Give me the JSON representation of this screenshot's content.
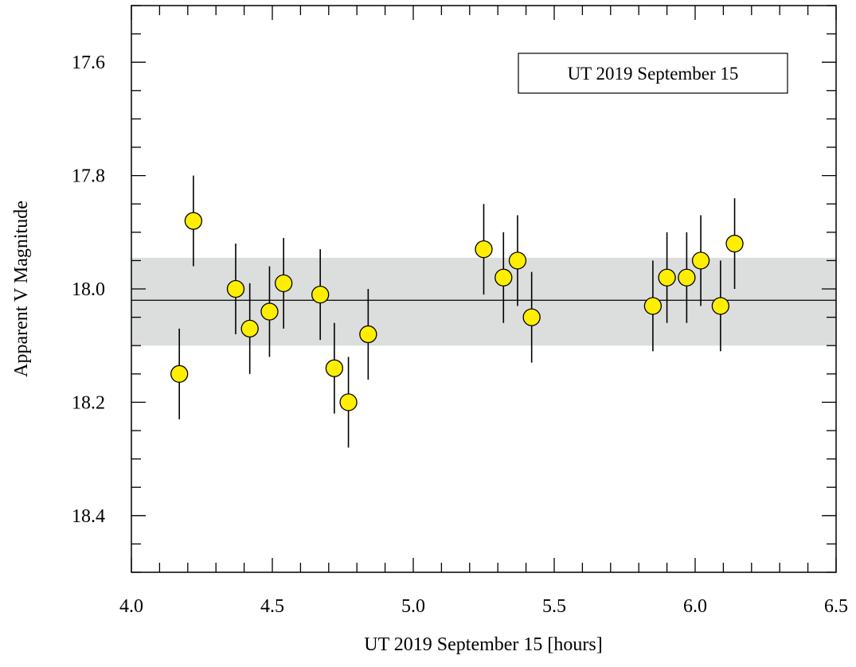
{
  "chart_data": {
    "type": "scatter",
    "title": "",
    "xlabel": "UT 2019 September 15 [hours]",
    "ylabel": "Apparent V Magnitude",
    "xlim": [
      4.0,
      6.5
    ],
    "ylim": [
      17.5,
      18.5
    ],
    "y_inverted": true,
    "x_major_ticks": [
      4.0,
      4.5,
      5.0,
      5.5,
      6.0,
      6.5
    ],
    "x_tick_labels": [
      "4.0",
      "4.5",
      "5.0",
      "5.5",
      "6.0",
      "6.5"
    ],
    "x_minor_step": 0.1,
    "y_major_ticks": [
      17.6,
      17.8,
      18.0,
      18.2,
      18.4
    ],
    "y_tick_labels": [
      "17.6",
      "17.8",
      "18.0",
      "18.2",
      "18.4"
    ],
    "y_minor_step": 0.05,
    "grid": false,
    "legend": {
      "text": "UT 2019 September 15",
      "placement": "top-right"
    },
    "mean_line": 18.02,
    "band": [
      17.945,
      18.1
    ],
    "colors": {
      "marker_fill": "#ffee00",
      "marker_edge": "#000000",
      "band": "#dcdddd",
      "line": "#000000"
    },
    "series": [
      {
        "x": [
          4.17,
          4.22,
          4.37,
          4.42,
          4.49,
          4.54,
          4.67,
          4.72,
          4.77,
          4.84,
          5.25,
          5.32,
          5.37,
          5.42,
          5.85,
          5.9,
          5.97,
          6.02,
          6.09,
          6.14
        ],
        "y": [
          18.15,
          17.88,
          18.0,
          18.07,
          18.04,
          17.99,
          18.01,
          18.14,
          18.2,
          18.08,
          17.93,
          17.98,
          17.95,
          18.05,
          18.03,
          17.98,
          17.98,
          17.95,
          18.03,
          17.92
        ],
        "yerr": [
          0.08,
          0.08,
          0.08,
          0.08,
          0.08,
          0.08,
          0.08,
          0.08,
          0.08,
          0.08,
          0.08,
          0.08,
          0.08,
          0.08,
          0.08,
          0.08,
          0.08,
          0.08,
          0.08,
          0.08
        ]
      }
    ]
  }
}
